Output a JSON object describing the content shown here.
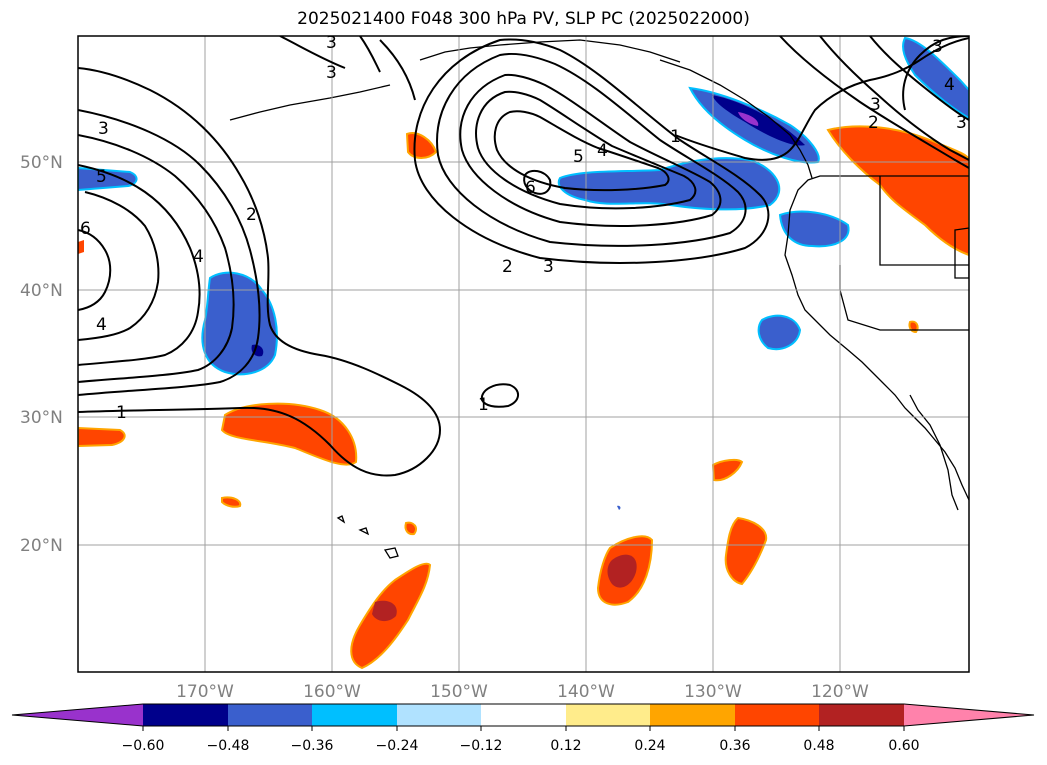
{
  "title": "2025021400 F048 300 hPa PV, SLP PC (2025022000)",
  "latitude_labels": [
    "50°N",
    "40°N",
    "30°N",
    "20°N"
  ],
  "longitude_labels": [
    "170°W",
    "160°W",
    "150°W",
    "140°W",
    "130°W",
    "120°W"
  ],
  "colorbar": {
    "colors": [
      "#9932cc",
      "#00008b",
      "#3a5fcd",
      "#00bfff",
      "#b0e2ff",
      "#ffffff",
      "#ffec8b",
      "#ffa500",
      "#ff4500",
      "#b22222",
      "#ff82ab"
    ],
    "tick_labels": [
      "−0.60",
      "−0.48",
      "−0.36",
      "−0.24",
      "−0.12",
      "0.12",
      "0.24",
      "0.36",
      "0.48",
      "0.60"
    ]
  },
  "contour_labels": [
    "3",
    "3",
    "3",
    "5",
    "6",
    "2",
    "4",
    "4",
    "1",
    "2",
    "3",
    "5",
    "4",
    "6",
    "1",
    "1",
    "3",
    "2",
    "3",
    "4",
    "3"
  ]
}
